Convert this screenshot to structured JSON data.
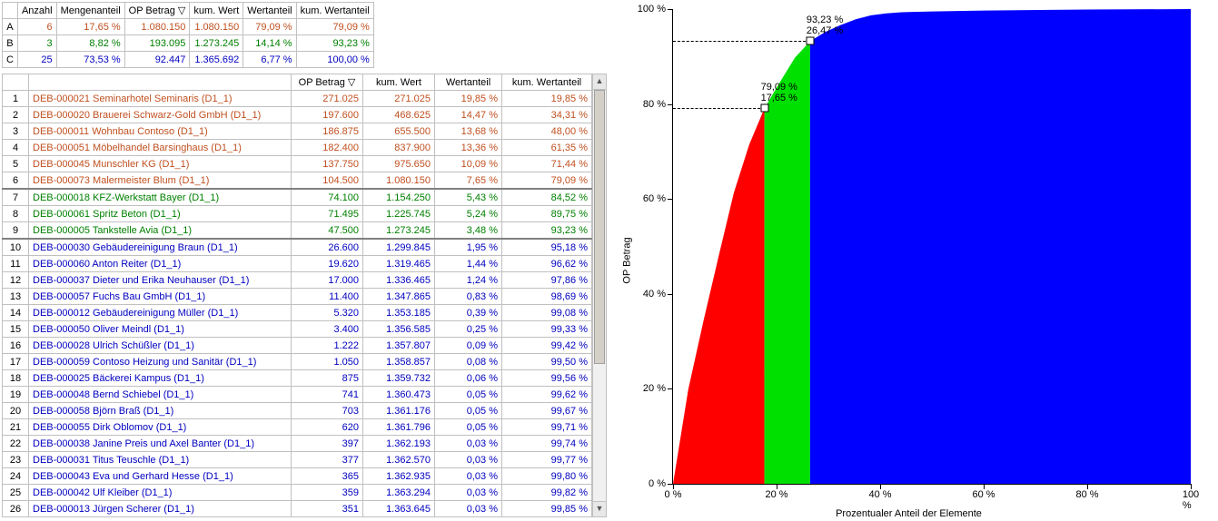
{
  "colors": {
    "groupA": "#c05020",
    "groupB": "#008000",
    "groupC": "#0000c0",
    "chartA": "#ff0000",
    "chartB": "#00e000",
    "chartC": "#0000ff",
    "black": "#000000"
  },
  "summary": {
    "headers": [
      "",
      "Anzahl",
      "Mengenanteil",
      "OP Betrag ▽",
      "kum. Wert",
      "Wertanteil",
      "kum. Wertanteil"
    ],
    "rows": [
      {
        "k": "A",
        "anzahl": "6",
        "mengen": "17,65 %",
        "op": "1.080.150",
        "kum": "1.080.150",
        "wert": "79,09 %",
        "kumw": "79,09 %",
        "color": "groupA"
      },
      {
        "k": "B",
        "anzahl": "3",
        "mengen": "8,82 %",
        "op": "193.095",
        "kum": "1.273.245",
        "wert": "14,14 %",
        "kumw": "93,23 %",
        "color": "groupB"
      },
      {
        "k": "C",
        "anzahl": "25",
        "mengen": "73,53 %",
        "op": "92.447",
        "kum": "1.365.692",
        "wert": "6,77 %",
        "kumw": "100,00 %",
        "color": "groupC"
      }
    ]
  },
  "detail": {
    "headers": [
      "",
      "",
      "OP Betrag ▽",
      "kum. Wert",
      "Wertanteil",
      "kum. Wertanteil"
    ],
    "rows": [
      {
        "n": "1",
        "name": "DEB-000021 Seminarhotel Seminaris (D1_1)",
        "op": "271.025",
        "kum": "271.025",
        "wert": "19,85 %",
        "kumw": "19,85 %",
        "g": "A"
      },
      {
        "n": "2",
        "name": "DEB-000020 Brauerei Schwarz-Gold GmbH (D1_1)",
        "op": "197.600",
        "kum": "468.625",
        "wert": "14,47 %",
        "kumw": "34,31 %",
        "g": "A"
      },
      {
        "n": "3",
        "name": "DEB-000011 Wohnbau Contoso (D1_1)",
        "op": "186.875",
        "kum": "655.500",
        "wert": "13,68 %",
        "kumw": "48,00 %",
        "g": "A"
      },
      {
        "n": "4",
        "name": "DEB-000051 Möbelhandel Barsinghaus (D1_1)",
        "op": "182.400",
        "kum": "837.900",
        "wert": "13,36 %",
        "kumw": "61,35 %",
        "g": "A"
      },
      {
        "n": "5",
        "name": "DEB-000045 Munschler KG (D1_1)",
        "op": "137.750",
        "kum": "975.650",
        "wert": "10,09 %",
        "kumw": "71,44 %",
        "g": "A"
      },
      {
        "n": "6",
        "name": "DEB-000073 Malermeister Blum (D1_1)",
        "op": "104.500",
        "kum": "1.080.150",
        "wert": "7,65 %",
        "kumw": "79,09 %",
        "g": "A",
        "sep": true
      },
      {
        "n": "7",
        "name": "DEB-000018 KFZ-Werkstatt Bayer (D1_1)",
        "op": "74.100",
        "kum": "1.154.250",
        "wert": "5,43 %",
        "kumw": "84,52 %",
        "g": "B"
      },
      {
        "n": "8",
        "name": "DEB-000061 Spritz Beton (D1_1)",
        "op": "71.495",
        "kum": "1.225.745",
        "wert": "5,24 %",
        "kumw": "89,75 %",
        "g": "B"
      },
      {
        "n": "9",
        "name": "DEB-000005 Tankstelle Avia (D1_1)",
        "op": "47.500",
        "kum": "1.273.245",
        "wert": "3,48 %",
        "kumw": "93,23 %",
        "g": "B",
        "sep": true
      },
      {
        "n": "10",
        "name": "DEB-000030 Gebäudereinigung Braun (D1_1)",
        "op": "26.600",
        "kum": "1.299.845",
        "wert": "1,95 %",
        "kumw": "95,18 %",
        "g": "C"
      },
      {
        "n": "11",
        "name": "DEB-000060 Anton Reiter (D1_1)",
        "op": "19.620",
        "kum": "1.319.465",
        "wert": "1,44 %",
        "kumw": "96,62 %",
        "g": "C"
      },
      {
        "n": "12",
        "name": "DEB-000037 Dieter und Erika Neuhauser (D1_1)",
        "op": "17.000",
        "kum": "1.336.465",
        "wert": "1,24 %",
        "kumw": "97,86 %",
        "g": "C"
      },
      {
        "n": "13",
        "name": "DEB-000057 Fuchs Bau GmbH (D1_1)",
        "op": "11.400",
        "kum": "1.347.865",
        "wert": "0,83 %",
        "kumw": "98,69 %",
        "g": "C"
      },
      {
        "n": "14",
        "name": "DEB-000012 Gebäudereinigung Müller (D1_1)",
        "op": "5.320",
        "kum": "1.353.185",
        "wert": "0,39 %",
        "kumw": "99,08 %",
        "g": "C"
      },
      {
        "n": "15",
        "name": "DEB-000050 Oliver Meindl (D1_1)",
        "op": "3.400",
        "kum": "1.356.585",
        "wert": "0,25 %",
        "kumw": "99,33 %",
        "g": "C"
      },
      {
        "n": "16",
        "name": "DEB-000028 Ulrich Schüßler (D1_1)",
        "op": "1.222",
        "kum": "1.357.807",
        "wert": "0,09 %",
        "kumw": "99,42 %",
        "g": "C"
      },
      {
        "n": "17",
        "name": "DEB-000059 Contoso Heizung und Sanitär (D1_1)",
        "op": "1.050",
        "kum": "1.358.857",
        "wert": "0,08 %",
        "kumw": "99,50 %",
        "g": "C"
      },
      {
        "n": "18",
        "name": "DEB-000025 Bäckerei Kampus (D1_1)",
        "op": "875",
        "kum": "1.359.732",
        "wert": "0,06 %",
        "kumw": "99,56 %",
        "g": "C"
      },
      {
        "n": "19",
        "name": "DEB-000048 Bernd Schiebel (D1_1)",
        "op": "741",
        "kum": "1.360.473",
        "wert": "0,05 %",
        "kumw": "99,62 %",
        "g": "C"
      },
      {
        "n": "20",
        "name": "DEB-000058 Björn Braß (D1_1)",
        "op": "703",
        "kum": "1.361.176",
        "wert": "0,05 %",
        "kumw": "99,67 %",
        "g": "C"
      },
      {
        "n": "21",
        "name": "DEB-000055 Dirk Oblomov (D1_1)",
        "op": "620",
        "kum": "1.361.796",
        "wert": "0,05 %",
        "kumw": "99,71 %",
        "g": "C"
      },
      {
        "n": "22",
        "name": "DEB-000038 Janine Preis und Axel Banter (D1_1)",
        "op": "397",
        "kum": "1.362.193",
        "wert": "0,03 %",
        "kumw": "99,74 %",
        "g": "C"
      },
      {
        "n": "23",
        "name": "DEB-000031 Titus Teuschle (D1_1)",
        "op": "377",
        "kum": "1.362.570",
        "wert": "0,03 %",
        "kumw": "99,77 %",
        "g": "C"
      },
      {
        "n": "24",
        "name": "DEB-000043 Eva und Gerhard Hesse (D1_1)",
        "op": "365",
        "kum": "1.362.935",
        "wert": "0,03 %",
        "kumw": "99,80 %",
        "g": "C"
      },
      {
        "n": "25",
        "name": "DEB-000042 Ulf Kleiber (D1_1)",
        "op": "359",
        "kum": "1.363.294",
        "wert": "0,03 %",
        "kumw": "99,82 %",
        "g": "C"
      },
      {
        "n": "26",
        "name": "DEB-000013 Jürgen Scherer (D1_1)",
        "op": "351",
        "kum": "1.363.645",
        "wert": "0,03 %",
        "kumw": "99,85 %",
        "g": "C"
      }
    ]
  },
  "chart": {
    "ylabel": "OP Betrag",
    "xlabel": "Prozentualer Anteil der Elemente",
    "yticks": [
      0,
      20,
      40,
      60,
      80,
      100
    ],
    "xticks": [
      0,
      20,
      40,
      60,
      80,
      100
    ],
    "tick_suffix": " %",
    "annotations": [
      {
        "x": 17.65,
        "lines": [
          "79,09 %",
          "17,65 %"
        ]
      },
      {
        "x": 26.47,
        "lines": [
          "93,23 %",
          "26,47 %"
        ]
      }
    ],
    "breakpoints": {
      "ab_x": 17.65,
      "ab_y": 79.09,
      "bc_x": 26.47,
      "bc_y": 93.23
    },
    "curveA": [
      [
        0,
        0
      ],
      [
        2.94,
        19.85
      ],
      [
        5.88,
        34.31
      ],
      [
        8.82,
        48.0
      ],
      [
        11.76,
        61.35
      ],
      [
        14.71,
        71.44
      ],
      [
        17.65,
        79.09
      ]
    ],
    "curveB": [
      [
        17.65,
        79.09
      ],
      [
        20.59,
        84.52
      ],
      [
        23.53,
        89.75
      ],
      [
        26.47,
        93.23
      ]
    ],
    "curveC": [
      [
        26.47,
        93.23
      ],
      [
        29.41,
        95.18
      ],
      [
        32.35,
        96.62
      ],
      [
        35.29,
        97.86
      ],
      [
        38.24,
        98.69
      ],
      [
        41.18,
        99.08
      ],
      [
        44.12,
        99.33
      ],
      [
        47.06,
        99.42
      ],
      [
        50.0,
        99.5
      ],
      [
        60,
        99.7
      ],
      [
        80,
        99.9
      ],
      [
        100,
        100
      ]
    ]
  }
}
